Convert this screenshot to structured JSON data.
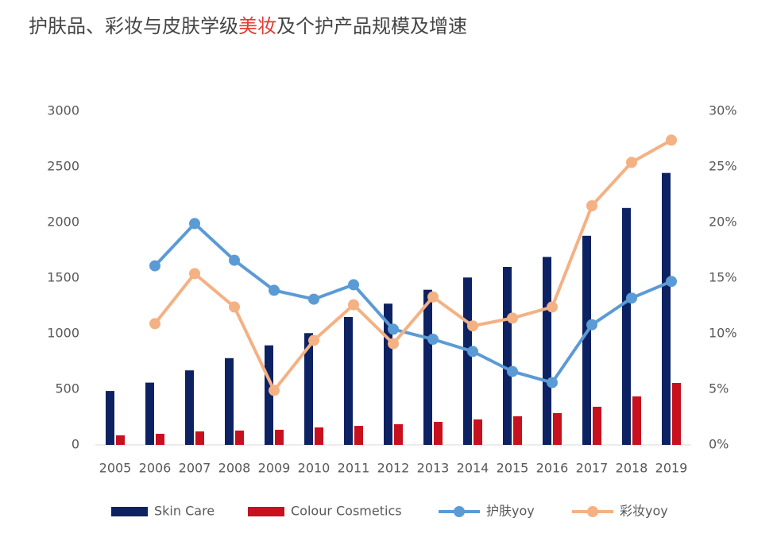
{
  "chart_data": {
    "type": "bar-line",
    "title_parts": [
      {
        "text": "护肤品、彩妆与皮肤学级",
        "color": "#444444"
      },
      {
        "text": "美妆",
        "color": "#e03c31"
      },
      {
        "text": "及个护产品规模及增速",
        "color": "#444444"
      }
    ],
    "categories": [
      "2005",
      "2006",
      "2007",
      "2008",
      "2009",
      "2010",
      "2011",
      "2012",
      "2013",
      "2014",
      "2015",
      "2016",
      "2017",
      "2018",
      "2019"
    ],
    "series": [
      {
        "name": "Skin Care",
        "kind": "bar",
        "color": "#0d2262",
        "values": [
          485,
          560,
          670,
          780,
          895,
          1005,
          1150,
          1270,
          1395,
          1505,
          1600,
          1690,
          1880,
          2130,
          2445
        ]
      },
      {
        "name": "Colour Cosmetics",
        "kind": "bar",
        "color": "#c8101e",
        "values": [
          86,
          100,
          121,
          129,
          136,
          157,
          171,
          186,
          207,
          229,
          257,
          286,
          343,
          436,
          557
        ]
      },
      {
        "name": "护肤yoy",
        "kind": "line",
        "axis": "y2",
        "color": "#5b9bd5",
        "values": [
          null,
          16.1,
          19.9,
          16.6,
          13.9,
          13.1,
          14.4,
          10.4,
          9.5,
          8.4,
          6.6,
          5.6,
          10.8,
          13.2,
          14.7
        ]
      },
      {
        "name": "彩妆yoy",
        "kind": "line",
        "axis": "y2",
        "color": "#f4b183",
        "values": [
          null,
          10.9,
          15.4,
          12.4,
          4.9,
          9.4,
          12.6,
          9.1,
          13.3,
          10.7,
          11.4,
          12.4,
          21.5,
          25.4,
          27.4
        ]
      }
    ],
    "ylim": [
      0,
      3000
    ],
    "yticks": [
      0,
      500,
      1000,
      1500,
      2000,
      2500,
      3000
    ],
    "y2lim": [
      0,
      30
    ],
    "y2ticks": [
      {
        "value": 0,
        "label": "0%"
      },
      {
        "value": 5,
        "label": "5%"
      },
      {
        "value": 10,
        "label": "10%"
      },
      {
        "value": 15,
        "label": "15%"
      },
      {
        "value": 20,
        "label": "20%"
      },
      {
        "value": 25,
        "label": "25%"
      },
      {
        "value": 30,
        "label": "30%"
      }
    ],
    "grid": false
  }
}
